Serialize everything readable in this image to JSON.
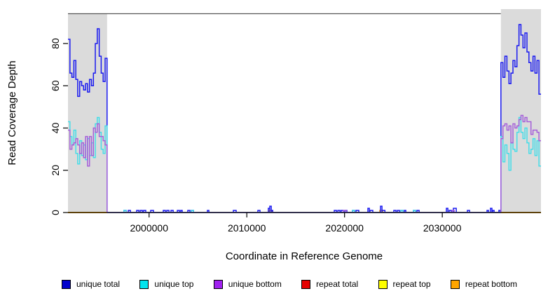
{
  "chart_data": {
    "type": "line",
    "step": true,
    "title": "",
    "xlabel": "Coordinate in Reference Genome",
    "ylabel": "Read Coverage Depth",
    "xlim": [
      1991700,
      2040100
    ],
    "ylim": [
      0,
      94.3
    ],
    "xticks": [
      2000000,
      2010000,
      2020000,
      2030000
    ],
    "yticks": [
      0,
      20,
      40,
      60,
      80
    ],
    "grid": false,
    "legend_position": "bottom",
    "shade_color": "#DBDBDB",
    "frame_color": "#555555",
    "shaded_regions": [
      {
        "x0": 1991700,
        "x1": 1995700
      },
      {
        "x0": 2036000,
        "x1": 2040100
      }
    ],
    "series": [
      {
        "name": "repeat total",
        "color": "#E60000",
        "baseline": [
          1991700,
          2040100
        ],
        "segments": []
      },
      {
        "name": "repeat top",
        "color": "#FFFF00",
        "baseline": [
          1991700,
          2040100
        ],
        "segments": []
      },
      {
        "name": "repeat bottom",
        "color": "#FFA500",
        "baseline": [
          1991700,
          2040100
        ],
        "segments": [
          [
            2012280,
            300,
            [
              1
            ]
          ],
          [
            2023600,
            300,
            [
              1
            ]
          ]
        ]
      },
      {
        "name": "unique total",
        "color": "#1A1AF0",
        "baseline": [
          1995700,
          2036000
        ],
        "segments": [
          [
            1991700,
            200,
            [
              82,
              66,
              64,
              72,
              63,
              55,
              62,
              60,
              58,
              61,
              57,
              63,
              60,
              66,
              80,
              87,
              74,
              66,
              62,
              73
            ],
            "start"
          ],
          [
            2036000,
            205,
            [
              71,
              64,
              74,
              67,
              61,
              66,
              72,
              69,
              79,
              89,
              84,
              78,
              85,
              76,
              71,
              67,
              74,
              66,
              72,
              56
            ],
            "end"
          ],
          [
            1997430,
            220,
            [
              1
            ]
          ],
          [
            1997870,
            220,
            [
              1
            ]
          ],
          [
            1998730,
            220,
            [
              1
            ]
          ],
          [
            1999090,
            220,
            [
              1
            ]
          ],
          [
            1999440,
            220,
            [
              1
            ]
          ],
          [
            2000160,
            290,
            [
              1
            ]
          ],
          [
            2001450,
            220,
            [
              1
            ]
          ],
          [
            2001810,
            220,
            [
              1
            ]
          ],
          [
            2002240,
            220,
            [
              1
            ]
          ],
          [
            2002890,
            220,
            [
              1
            ]
          ],
          [
            2003240,
            150,
            [
              1
            ]
          ],
          [
            2003960,
            220,
            [
              1
            ]
          ],
          [
            2004320,
            220,
            [
              1
            ]
          ],
          [
            2005970,
            150,
            [
              1
            ]
          ],
          [
            2008620,
            290,
            [
              1
            ]
          ],
          [
            2011130,
            220,
            [
              1
            ]
          ],
          [
            2012200,
            150,
            [
              2
            ]
          ],
          [
            2012350,
            150,
            [
              3
            ]
          ],
          [
            2012500,
            150,
            [
              1
            ]
          ],
          [
            2018950,
            220,
            [
              1
            ]
          ],
          [
            2019310,
            220,
            [
              1
            ]
          ],
          [
            2019660,
            220,
            [
              1
            ]
          ],
          [
            2020020,
            220,
            [
              1
            ]
          ],
          [
            2020810,
            220,
            [
              1
            ]
          ],
          [
            2021170,
            290,
            [
              1
            ]
          ],
          [
            2022390,
            150,
            [
              2
            ]
          ],
          [
            2022600,
            290,
            [
              1
            ]
          ],
          [
            2023680,
            150,
            [
              3
            ]
          ],
          [
            2023830,
            300,
            [
              1
            ]
          ],
          [
            2025040,
            220,
            [
              1
            ]
          ],
          [
            2025400,
            220,
            [
              1
            ]
          ],
          [
            2025760,
            220,
            [
              1
            ]
          ],
          [
            2026120,
            150,
            [
              1
            ]
          ],
          [
            2027050,
            220,
            [
              1
            ]
          ],
          [
            2027410,
            220,
            [
              1
            ]
          ],
          [
            2030420,
            150,
            [
              2
            ]
          ],
          [
            2030710,
            220,
            [
              1
            ]
          ],
          [
            2031140,
            290,
            [
              2
            ]
          ],
          [
            2032570,
            220,
            [
              1
            ]
          ],
          [
            2034580,
            150,
            [
              1
            ]
          ],
          [
            2034930,
            150,
            [
              2
            ]
          ],
          [
            2035150,
            150,
            [
              1
            ]
          ],
          [
            2035790,
            150,
            [
              1
            ]
          ]
        ]
      },
      {
        "name": "unique top",
        "color": "#45DDE8",
        "baseline": [
          1995700,
          2036000
        ],
        "segments": [
          [
            1991700,
            200,
            [
              43,
              36,
              32,
              39,
              28,
              23,
              34,
              27,
              32,
              25,
              35,
              27,
              33,
              26,
              42,
              45,
              38,
              30,
              28,
              41
            ],
            "start"
          ],
          [
            2036000,
            205,
            [
              36,
              24,
              32,
              28,
              20,
              33,
              30,
              29,
              38,
              45,
              38,
              35,
              40,
              33,
              28,
              30,
              35,
              27,
              34,
              22
            ],
            "end"
          ],
          [
            1997430,
            220,
            [
              1
            ]
          ],
          [
            2004320,
            220,
            [
              1
            ]
          ],
          [
            2020810,
            220,
            [
              1
            ]
          ],
          [
            2025760,
            220,
            [
              1
            ]
          ],
          [
            2027050,
            220,
            [
              1
            ]
          ]
        ]
      },
      {
        "name": "unique bottom",
        "color": "#A55FD9",
        "baseline": [
          1995700,
          2036000
        ],
        "segments": [
          [
            1991700,
            200,
            [
              39,
              30,
              32,
              33,
              35,
              32,
              28,
              33,
              26,
              36,
              22,
              36,
              27,
              40,
              38,
              42,
              36,
              36,
              34,
              32
            ],
            "start"
          ],
          [
            2036000,
            205,
            [
              35,
              41,
              42,
              39,
              41,
              33,
              42,
              40,
              41,
              44,
              46,
              43,
              45,
              43,
              43,
              37,
              39,
              39,
              38,
              34
            ],
            "end"
          ],
          [
            2019880,
            290,
            [
              1
            ]
          ],
          [
            2031000,
            220,
            [
              1
            ]
          ]
        ]
      }
    ],
    "legend": [
      {
        "label": "unique total",
        "fill": "#0000CC"
      },
      {
        "label": "unique top",
        "fill": "#00E5EE"
      },
      {
        "label": "unique bottom",
        "fill": "#A020F0"
      },
      {
        "label": "repeat total",
        "fill": "#E60000"
      },
      {
        "label": "repeat top",
        "fill": "#FFFF00"
      },
      {
        "label": "repeat bottom",
        "fill": "#FFA500"
      }
    ]
  }
}
